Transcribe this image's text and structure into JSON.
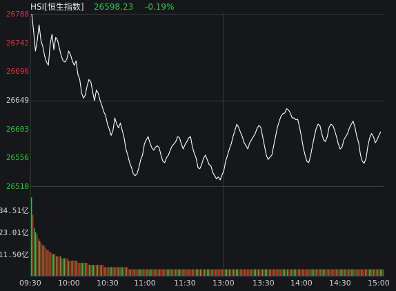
{
  "header": {
    "title": "HSI[恒生指数]",
    "last_value": "26598.23",
    "change_pct": "-0.19%"
  },
  "colors": {
    "background": "#16171b",
    "grid": "#3b3e45",
    "price_line": "#ffffff",
    "up": "#e02424",
    "down": "#22c43a",
    "label_up": "#e0303a",
    "label_down": "#28c840",
    "volume_label": "#d9d9d9"
  },
  "chart_data": {
    "type": "line",
    "title": "",
    "price_axis": {
      "ylim": [
        26510,
        26788
      ],
      "ticks": [
        "26788",
        "26742",
        "26696",
        "26649",
        "26603",
        "26556",
        "26510"
      ]
    },
    "volume_axis": {
      "ticks": [
        "34.51亿",
        "23.01亿",
        "11.50亿"
      ]
    },
    "x_ticks": [
      "09:30",
      "10:00",
      "10:30",
      "11:00",
      "11:30",
      "13:00",
      "13:30",
      "14:00",
      "14:30",
      "15:00"
    ],
    "series": [
      {
        "values": [
          26788,
          26760,
          26728,
          26745,
          26770,
          26745,
          26735,
          26720,
          26710,
          26705,
          26740,
          26755,
          26730,
          26750,
          26745,
          26732,
          26720,
          26712,
          26710,
          26715,
          26728,
          26722,
          26712,
          26705,
          26712,
          26690,
          26682,
          26660,
          26652,
          26657,
          26672,
          26682,
          26678,
          26662,
          26648,
          26665,
          26660,
          26648,
          26640,
          26630,
          26624,
          26610,
          26602,
          26592,
          26600,
          26620,
          26610,
          26604,
          26612,
          26600,
          26588,
          26570,
          26560,
          26548,
          26540,
          26530,
          26527,
          26530,
          26540,
          26553,
          26560,
          26578,
          26585,
          26590,
          26580,
          26572,
          26568,
          26573,
          26575,
          26572,
          26560,
          26550,
          26548,
          26556,
          26560,
          26568,
          26575,
          26578,
          26582,
          26590,
          26588,
          26578,
          26570,
          26577,
          26582,
          26588,
          26590,
          26573,
          26563,
          26555,
          26540,
          26538,
          26545,
          26555,
          26560,
          26553,
          26545,
          26543,
          26532,
          26527,
          26522,
          26525,
          26520,
          26528,
          26535,
          26550,
          26560,
          26570,
          26578,
          26590,
          26600,
          26610,
          26605,
          26597,
          26590,
          26580,
          26575,
          26570,
          26580,
          26585,
          26590,
          26595,
          26603,
          26608,
          26605,
          26590,
          26575,
          26560,
          26553,
          26557,
          26560,
          26575,
          26590,
          26605,
          26615,
          26623,
          26627,
          26628,
          26635,
          26633,
          26628,
          26620,
          26620,
          26617,
          26618,
          26605,
          26590,
          26572,
          26560,
          26550,
          26548,
          26560,
          26575,
          26590,
          26603,
          26610,
          26608,
          26595,
          26585,
          26582,
          26590,
          26605,
          26610,
          26608,
          26600,
          26590,
          26578,
          26570,
          26573,
          26585,
          26590,
          26595,
          26604,
          26610,
          26615,
          26605,
          26590,
          26580,
          26560,
          26550,
          26547,
          26555,
          26575,
          26588,
          26595,
          26590,
          26580,
          26585,
          26592,
          26598
        ]
      }
    ],
    "volume": {
      "max": 38,
      "values": [
        36,
        28,
        22,
        20,
        19,
        17,
        16,
        15,
        14,
        14,
        13,
        12,
        12,
        11,
        11,
        10,
        10,
        10,
        9,
        9,
        9,
        9,
        8,
        8,
        8,
        8,
        8,
        7,
        7,
        7,
        7,
        7,
        7,
        7,
        6,
        6,
        6,
        6,
        6,
        6,
        6,
        6,
        5,
        5,
        5,
        5,
        5,
        5,
        5,
        5,
        5,
        5,
        5,
        4,
        4,
        4,
        4,
        4,
        4,
        4,
        4,
        4,
        4,
        4,
        4,
        4,
        4,
        4,
        4,
        4,
        4,
        3,
        3,
        3,
        3,
        3,
        3,
        3,
        3,
        3,
        3,
        3,
        3,
        3,
        3,
        3,
        3,
        3,
        3,
        3,
        3,
        3,
        3,
        3,
        3,
        3,
        3,
        3,
        3,
        3,
        3,
        3,
        3,
        3,
        3,
        3,
        3,
        3,
        3,
        3,
        3,
        3,
        3,
        3,
        3,
        3,
        3,
        3,
        3,
        3,
        3,
        3,
        3,
        3,
        3,
        3,
        3,
        3,
        3,
        3,
        3,
        3,
        3,
        3,
        3,
        3,
        3,
        3,
        3,
        3,
        3,
        3,
        3,
        3,
        3,
        3,
        3,
        3,
        3,
        3,
        3,
        3,
        3,
        3,
        3,
        3,
        3,
        3,
        3,
        3,
        3,
        3,
        3,
        3,
        3,
        3,
        3,
        3,
        3,
        3,
        3,
        3,
        3,
        3,
        3,
        3,
        3,
        3,
        3,
        3,
        3,
        3,
        3,
        3,
        3,
        3,
        3,
        3,
        3,
        3,
        3,
        3,
        3,
        3,
        3,
        3,
        3,
        3,
        3,
        3,
        3,
        3,
        3,
        3,
        3,
        3,
        3,
        3,
        3,
        3,
        3,
        3,
        3,
        3,
        3,
        3,
        3,
        3,
        3,
        3,
        3,
        3,
        3,
        3,
        3,
        3,
        3,
        3,
        3,
        3,
        3,
        3,
        3,
        3,
        3,
        3,
        3,
        3,
        3,
        3,
        3,
        3,
        3,
        3,
        3,
        3,
        3,
        3,
        3,
        3,
        3,
        3,
        3,
        3,
        3,
        3,
        3
      ]
    }
  }
}
